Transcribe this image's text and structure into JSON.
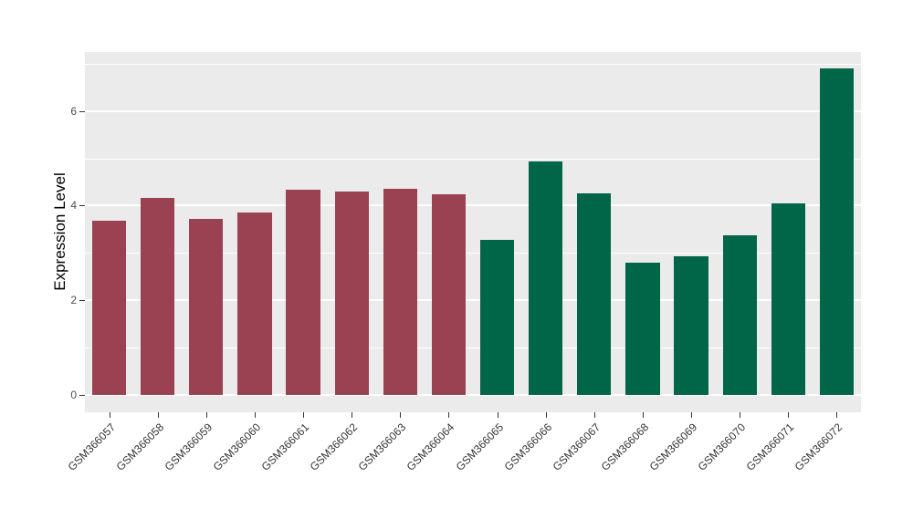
{
  "chart_data": {
    "type": "bar",
    "title": "",
    "xlabel": "",
    "ylabel": "Expression Level",
    "categories": [
      "GSM366057",
      "GSM366058",
      "GSM366059",
      "GSM366060",
      "GSM366061",
      "GSM366062",
      "GSM366063",
      "GSM366064",
      "GSM366065",
      "GSM366066",
      "GSM366067",
      "GSM366068",
      "GSM366069",
      "GSM366070",
      "GSM366071",
      "GSM366072"
    ],
    "values": [
      3.69,
      4.16,
      3.72,
      3.86,
      4.33,
      4.3,
      4.36,
      4.25,
      3.28,
      4.94,
      4.26,
      2.8,
      2.93,
      3.38,
      4.05,
      6.91
    ],
    "bar_colors": [
      "#9B4252",
      "#9B4252",
      "#9B4252",
      "#9B4252",
      "#9B4252",
      "#9B4252",
      "#9B4252",
      "#9B4252",
      "#006647",
      "#006647",
      "#006647",
      "#006647",
      "#006647",
      "#006647",
      "#006647",
      "#006647"
    ],
    "group_colors": {
      "left_group": "#9B4252",
      "right_group": "#006647"
    },
    "ytick_labels": [
      "0",
      "2",
      "4",
      "6"
    ],
    "yticks": [
      0,
      2,
      4,
      6
    ],
    "minor_gridlines": [
      1,
      3,
      5,
      7
    ],
    "ylim": [
      -0.37,
      7.25
    ],
    "grid": "on",
    "legend": "none",
    "panel_background": "#EBEBEB",
    "gridline_color": "#ffffff",
    "bar_width_fraction": 0.7
  }
}
